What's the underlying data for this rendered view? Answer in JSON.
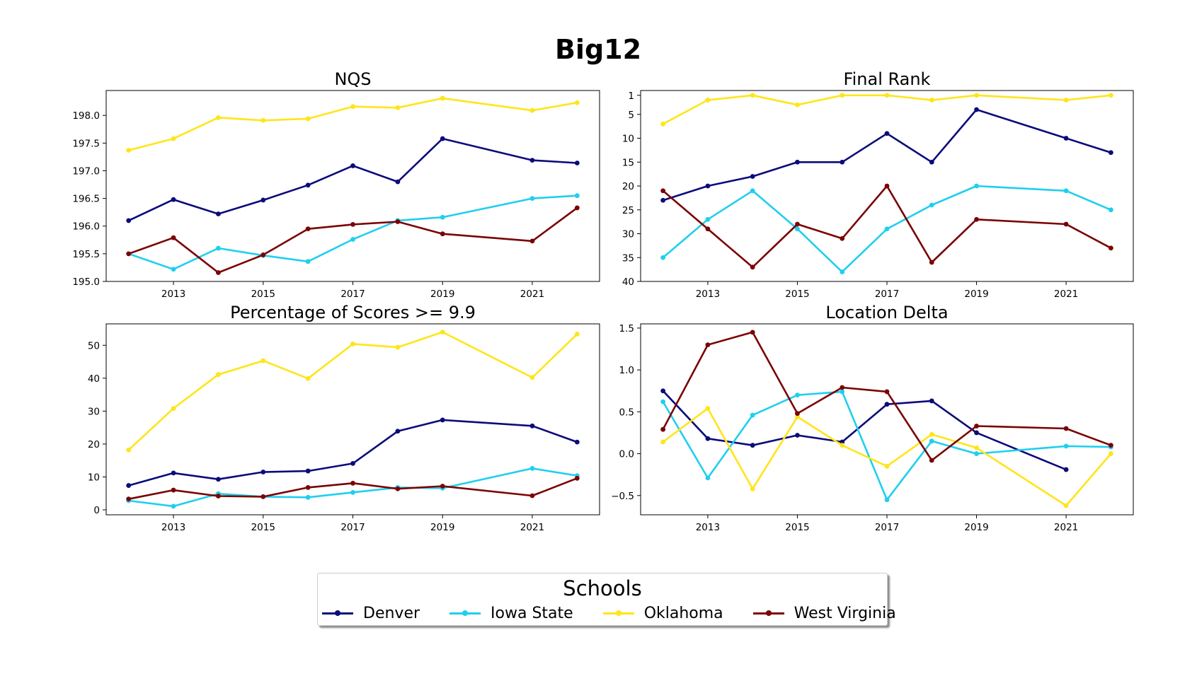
{
  "colors": {
    "Denver": "#0b0b7a",
    "Iowa State": "#1fcfef",
    "Oklahoma": "#ffe519",
    "West Virginia": "#7a0303"
  },
  "figure": {
    "suptitle": "Big12"
  },
  "legend": {
    "title": "Schools",
    "entries": [
      "Denver",
      "Iowa State",
      "Oklahoma",
      "West Virginia"
    ]
  },
  "chart_data": [
    {
      "type": "line",
      "title": "NQS",
      "xlabel": "",
      "ylabel": "",
      "xlim": [
        2011.5,
        2022.5
      ],
      "ylim": [
        195.0,
        198.45
      ],
      "xticks": [
        2013,
        2015,
        2017,
        2019,
        2021
      ],
      "yticks": [
        195.0,
        195.5,
        196.0,
        196.5,
        197.0,
        197.5,
        198.0
      ],
      "ytick_labels": [
        "195.0",
        "195.5",
        "196.0",
        "196.5",
        "197.0",
        "197.5",
        "198.0"
      ],
      "inverted": false,
      "series": [
        {
          "name": "Denver",
          "x": [
            2012,
            2013,
            2014,
            2015,
            2016,
            2017,
            2018,
            2019,
            2021,
            2022
          ],
          "y": [
            196.1,
            196.48,
            196.22,
            196.47,
            196.74,
            197.09,
            196.8,
            197.58,
            197.19,
            197.14
          ]
        },
        {
          "name": "Iowa State",
          "x": [
            2012,
            2013,
            2014,
            2015,
            2016,
            2017,
            2018,
            2019,
            2021,
            2022
          ],
          "y": [
            195.5,
            195.22,
            195.6,
            195.47,
            195.36,
            195.76,
            196.1,
            196.16,
            196.5,
            196.55
          ]
        },
        {
          "name": "Oklahoma",
          "x": [
            2012,
            2013,
            2014,
            2015,
            2016,
            2017,
            2018,
            2019,
            2021,
            2022
          ],
          "y": [
            197.37,
            197.58,
            197.96,
            197.91,
            197.94,
            198.16,
            198.14,
            198.31,
            198.09,
            198.23
          ]
        },
        {
          "name": "West Virginia",
          "x": [
            2012,
            2013,
            2014,
            2015,
            2016,
            2017,
            2018,
            2019,
            2021,
            2022
          ],
          "y": [
            195.5,
            195.79,
            195.16,
            195.48,
            195.95,
            196.03,
            196.08,
            195.86,
            195.73,
            196.33
          ]
        }
      ]
    },
    {
      "type": "line",
      "title": "Final Rank",
      "xlabel": "",
      "ylabel": "",
      "xlim": [
        2011.5,
        2022.5
      ],
      "ylim": [
        40,
        0
      ],
      "xticks": [
        2013,
        2015,
        2017,
        2019,
        2021
      ],
      "yticks": [
        1,
        5,
        10,
        15,
        20,
        25,
        30,
        35,
        40
      ],
      "ytick_labels": [
        "1",
        "5",
        "10",
        "15",
        "20",
        "25",
        "30",
        "35",
        "40"
      ],
      "inverted": true,
      "series": [
        {
          "name": "Denver",
          "x": [
            2012,
            2013,
            2014,
            2015,
            2016,
            2017,
            2018,
            2019,
            2021,
            2022
          ],
          "y": [
            23,
            20,
            18,
            15,
            15,
            9,
            15,
            4,
            10,
            13
          ]
        },
        {
          "name": "Iowa State",
          "x": [
            2012,
            2013,
            2014,
            2015,
            2016,
            2017,
            2018,
            2019,
            2021,
            2022
          ],
          "y": [
            35,
            27,
            21,
            29,
            38,
            29,
            24,
            20,
            21,
            25
          ]
        },
        {
          "name": "Oklahoma",
          "x": [
            2012,
            2013,
            2014,
            2015,
            2016,
            2017,
            2018,
            2019,
            2021,
            2022
          ],
          "y": [
            7,
            2,
            1,
            3,
            1,
            1,
            2,
            1,
            2,
            1
          ]
        },
        {
          "name": "West Virginia",
          "x": [
            2012,
            2013,
            2014,
            2015,
            2016,
            2017,
            2018,
            2019,
            2021,
            2022
          ],
          "y": [
            21,
            29,
            37,
            28,
            31,
            20,
            36,
            27,
            28,
            33
          ]
        }
      ]
    },
    {
      "type": "line",
      "title": "Percentage of Scores >= 9.9",
      "xlabel": "",
      "ylabel": "",
      "xlim": [
        2011.5,
        2022.5
      ],
      "ylim": [
        -1.5,
        56.5
      ],
      "xticks": [
        2013,
        2015,
        2017,
        2019,
        2021
      ],
      "yticks": [
        0,
        10,
        20,
        30,
        40,
        50
      ],
      "ytick_labels": [
        "0",
        "10",
        "20",
        "30",
        "40",
        "50"
      ],
      "inverted": false,
      "series": [
        {
          "name": "Denver",
          "x": [
            2012,
            2013,
            2014,
            2015,
            2016,
            2017,
            2018,
            2019,
            2021,
            2022
          ],
          "y": [
            7.4,
            11.2,
            9.3,
            11.5,
            11.8,
            14.1,
            23.9,
            27.3,
            25.5,
            20.6
          ]
        },
        {
          "name": "Iowa State",
          "x": [
            2012,
            2013,
            2014,
            2015,
            2016,
            2017,
            2018,
            2019,
            2021,
            2022
          ],
          "y": [
            2.8,
            1.1,
            4.9,
            4.0,
            3.8,
            5.3,
            6.8,
            6.6,
            12.6,
            10.4
          ]
        },
        {
          "name": "Oklahoma",
          "x": [
            2012,
            2013,
            2014,
            2015,
            2016,
            2017,
            2018,
            2019,
            2021,
            2022
          ],
          "y": [
            18.2,
            30.8,
            41.1,
            45.3,
            39.9,
            50.4,
            49.4,
            54.0,
            40.2,
            53.4
          ]
        },
        {
          "name": "West Virginia",
          "x": [
            2012,
            2013,
            2014,
            2015,
            2016,
            2017,
            2018,
            2019,
            2021,
            2022
          ],
          "y": [
            3.3,
            6.0,
            4.2,
            4.0,
            6.8,
            8.1,
            6.4,
            7.2,
            4.3,
            9.6
          ]
        }
      ]
    },
    {
      "type": "line",
      "title": "Location Delta",
      "xlabel": "",
      "ylabel": "",
      "xlim": [
        2011.5,
        2022.5
      ],
      "ylim": [
        -0.73,
        1.55
      ],
      "xticks": [
        2013,
        2015,
        2017,
        2019,
        2021
      ],
      "yticks": [
        -0.5,
        0.0,
        0.5,
        1.0,
        1.5
      ],
      "ytick_labels": [
        "−0.5",
        "0.0",
        "0.5",
        "1.0",
        "1.5"
      ],
      "inverted": false,
      "series": [
        {
          "name": "Denver",
          "x": [
            2012,
            2013,
            2014,
            2015,
            2016,
            2017,
            2018,
            2019,
            2021
          ],
          "y": [
            0.75,
            0.18,
            0.1,
            0.22,
            0.14,
            0.59,
            0.63,
            0.25,
            -0.19
          ]
        },
        {
          "name": "Iowa State",
          "x": [
            2012,
            2013,
            2014,
            2015,
            2016,
            2017,
            2018,
            2019,
            2021,
            2022
          ],
          "y": [
            0.62,
            -0.29,
            0.46,
            0.7,
            0.74,
            -0.55,
            0.15,
            0.0,
            0.09,
            0.08
          ]
        },
        {
          "name": "Oklahoma",
          "x": [
            2012,
            2013,
            2014,
            2015,
            2016,
            2017,
            2018,
            2019,
            2021,
            2022
          ],
          "y": [
            0.14,
            0.54,
            -0.42,
            0.44,
            0.1,
            -0.15,
            0.23,
            0.07,
            -0.62,
            0.0
          ]
        },
        {
          "name": "West Virginia",
          "x": [
            2012,
            2013,
            2014,
            2015,
            2016,
            2017,
            2018,
            2019,
            2021,
            2022
          ],
          "y": [
            0.29,
            1.3,
            1.45,
            0.48,
            0.79,
            0.74,
            -0.08,
            0.33,
            0.3,
            0.1
          ]
        }
      ]
    }
  ]
}
